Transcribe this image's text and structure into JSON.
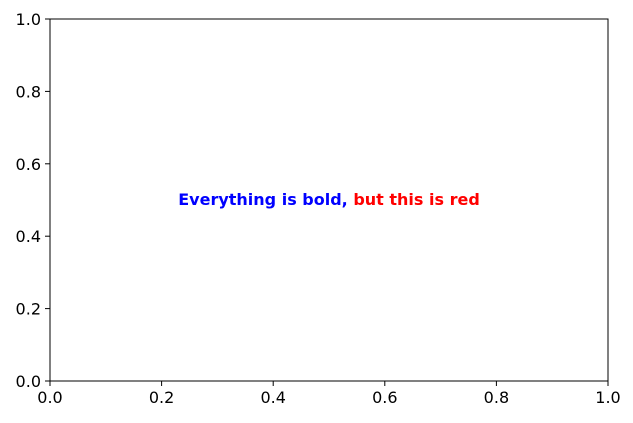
{
  "chart_data": {
    "type": "scatter",
    "title": "",
    "xlabel": "",
    "ylabel": "",
    "xlim": [
      0.0,
      1.0
    ],
    "ylim": [
      0.0,
      1.0
    ],
    "grid": false,
    "x_ticks": [
      0.0,
      0.2,
      0.4,
      0.6,
      0.8,
      1.0
    ],
    "x_tick_labels": [
      "0.0",
      "0.2",
      "0.4",
      "0.6",
      "0.8",
      "1.0"
    ],
    "y_ticks": [
      0.0,
      0.2,
      0.4,
      0.6,
      0.8,
      1.0
    ],
    "y_tick_labels": [
      "0.0",
      "0.2",
      "0.4",
      "0.6",
      "0.8",
      "1.0"
    ],
    "series": [],
    "annotations": [
      {
        "x": 0.5,
        "y": 0.5,
        "weight": "bold",
        "parts": [
          {
            "text": "Everything is bold, ",
            "color": "#0000ff"
          },
          {
            "text": "but this is red",
            "color": "#ff0000"
          }
        ]
      }
    ]
  }
}
